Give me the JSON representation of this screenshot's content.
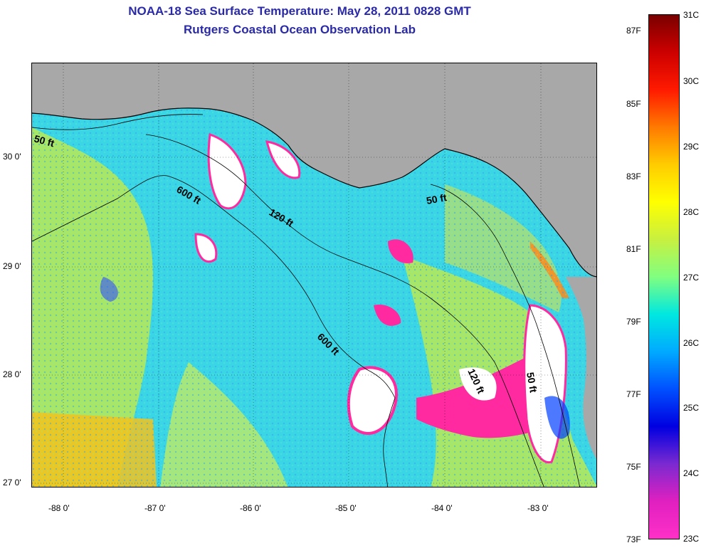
{
  "title_line1": "NOAA-18 Sea Surface Temperature:  May 28, 2011 0828 GMT",
  "title_line2": "Rutgers Coastal Ocean Observation Lab",
  "latitude_labels": [
    "30 0'",
    "29 0'",
    "28 0'",
    "27 0'"
  ],
  "longitude_labels": [
    "-88 0'",
    "-87 0'",
    "-86 0'",
    "-85 0'",
    "-84 0'",
    "-83 0'"
  ],
  "contour_labels": [
    "50 ft",
    "600 ft",
    "120 ft",
    "50 ft",
    "600 ft",
    "120 ft",
    "50 ft"
  ],
  "colorbar": {
    "fahrenheit": [
      "87F",
      "85F",
      "83F",
      "81F",
      "79F",
      "77F",
      "75F",
      "73F"
    ],
    "celsius": [
      "31C",
      "30C",
      "29C",
      "28C",
      "27C",
      "26C",
      "25C",
      "24C",
      "23C"
    ],
    "colors": [
      "#7a0000",
      "#cc0000",
      "#ff1a00",
      "#ff7a00",
      "#ffcc00",
      "#ffff00",
      "#c8f040",
      "#80ff80",
      "#00e8e0",
      "#00aaff",
      "#0050ff",
      "#0000e0",
      "#7a2ad0",
      "#e020c0",
      "#ff30c8"
    ]
  },
  "colors": {
    "land": "#a8a8a8",
    "water_base": "#3ad6e6",
    "warm_water": "#c8ec60",
    "hot_water": "#ffc020",
    "cloud": "#ffffff",
    "cold_edge": "#ff2aa0",
    "title": "#2a2aa8"
  }
}
